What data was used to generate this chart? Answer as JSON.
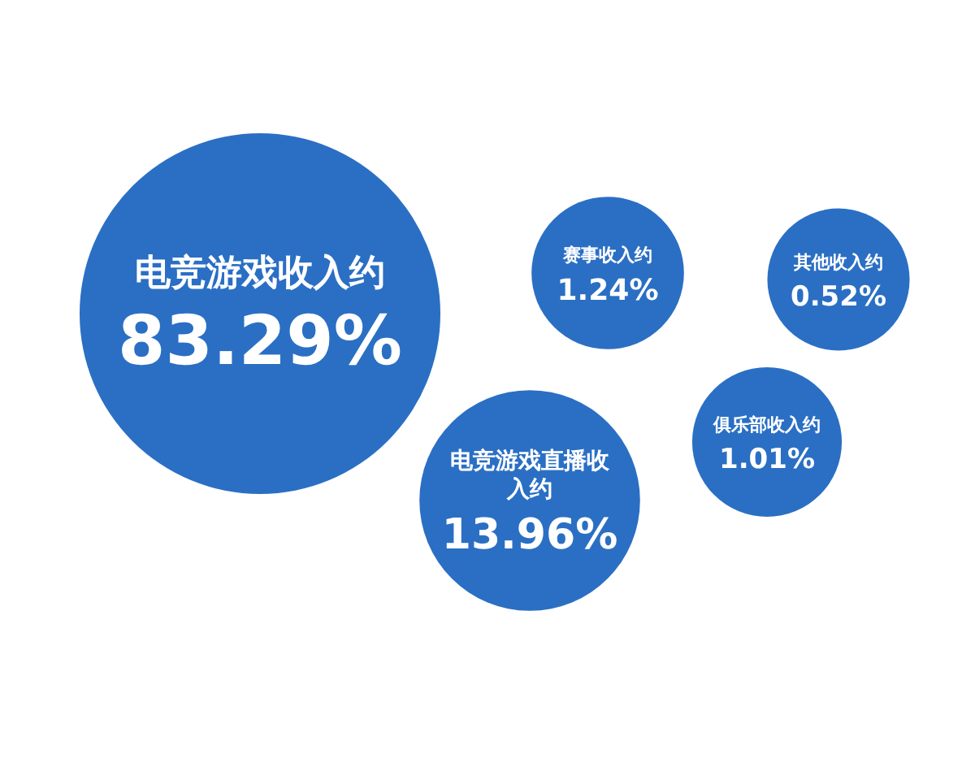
{
  "chart_data": {
    "type": "other",
    "categories": [
      "电竞游戏收入约",
      "赛事收入约",
      "其他收入约",
      "电竞游戏直播收入约",
      "俱乐部收入约"
    ],
    "values": [
      83.29,
      1.24,
      0.52,
      13.96,
      1.01
    ],
    "value_labels": [
      "83.29%",
      "1.24%",
      "0.52%",
      "13.96%",
      "1.01%"
    ],
    "color": "#2a6fc4"
  }
}
